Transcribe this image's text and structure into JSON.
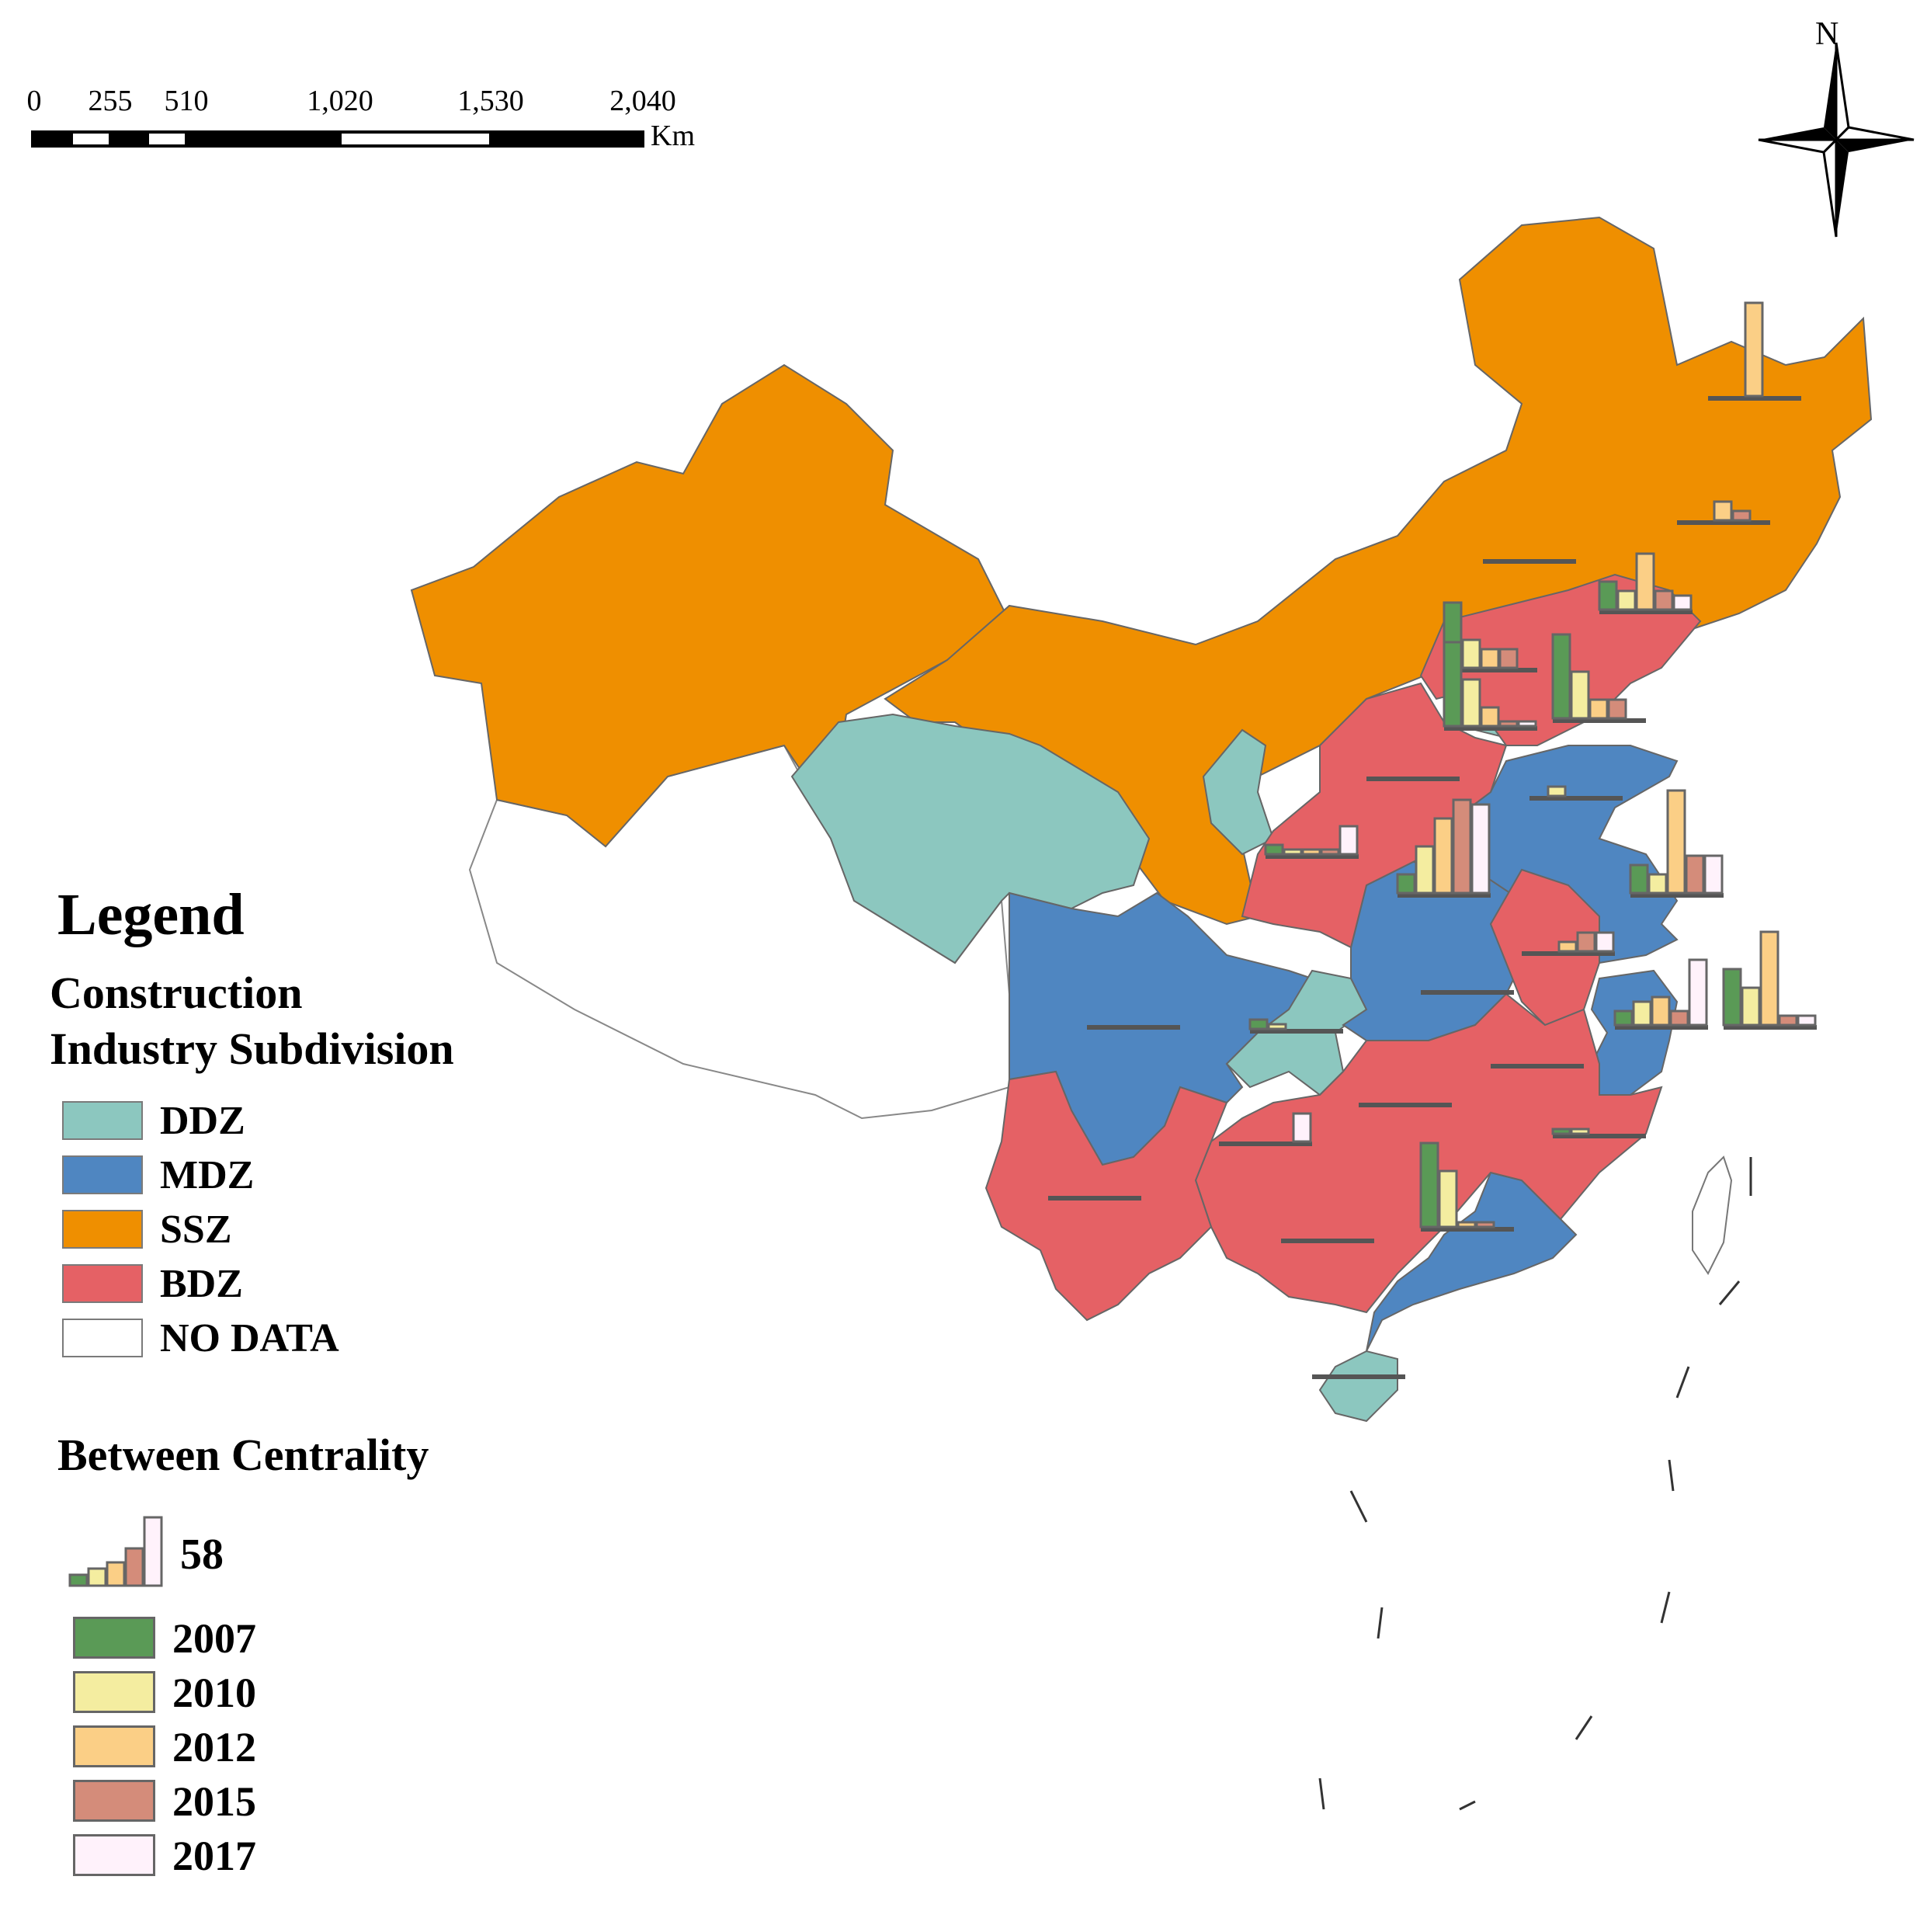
{
  "scale_bar": {
    "ticks": [
      "0",
      "255",
      "510",
      "1,020",
      "1,530",
      "2,040"
    ],
    "unit": "Km"
  },
  "north_arrow": {
    "label": "N",
    "icon": "north-arrow-icon"
  },
  "legend": {
    "title": "Legend",
    "subdivision_title_line1": "Construction",
    "subdivision_title_line2": "Industry Subdivision",
    "zones": [
      {
        "label": "DDZ",
        "color": "#8cc7bf"
      },
      {
        "label": "MDZ",
        "color": "#4f86c1"
      },
      {
        "label": "SSZ",
        "color": "#ef8f00"
      },
      {
        "label": "BDZ",
        "color": "#e56165"
      },
      {
        "label": "NO DATA",
        "color": "#ffffff"
      }
    ]
  },
  "centrality": {
    "title": "Between Centrality",
    "reference_value": "58",
    "years": [
      {
        "label": "2007",
        "color": "#5a9a56"
      },
      {
        "label": "2010",
        "color": "#f4eda0"
      },
      {
        "label": "2012",
        "color": "#fbcf86"
      },
      {
        "label": "2015",
        "color": "#d48c7a"
      },
      {
        "label": "2017",
        "color": "#fff2fb"
      }
    ]
  }
}
